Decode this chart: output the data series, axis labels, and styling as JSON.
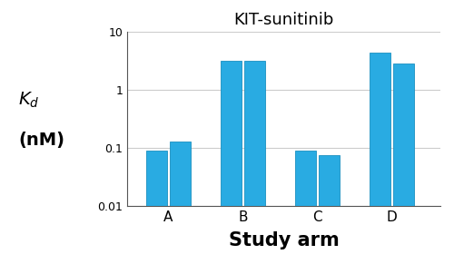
{
  "title": "KIT-sunitinib",
  "xlabel": "Study arm",
  "groups": [
    "A",
    "B",
    "C",
    "D"
  ],
  "bar1_values": [
    0.09,
    3.2,
    0.09,
    4.3
  ],
  "bar2_values": [
    0.13,
    3.2,
    0.075,
    2.8
  ],
  "bar_color": "#29ABE2",
  "bar_edge_color": "#1a8fc0",
  "ylim_bottom": 0.01,
  "ylim_top": 10,
  "yticks": [
    0.01,
    0.1,
    1,
    10
  ],
  "ytick_labels": [
    "0.01",
    "0.1",
    "1",
    "10"
  ],
  "bar_width": 0.28,
  "group_positions": [
    1,
    2,
    3,
    4
  ],
  "background_color": "#ffffff",
  "title_fontsize": 13,
  "xlabel_fontsize": 15,
  "ylabel_fontsize": 13,
  "tick_fontsize": 9,
  "xlim": [
    0.45,
    4.65
  ]
}
